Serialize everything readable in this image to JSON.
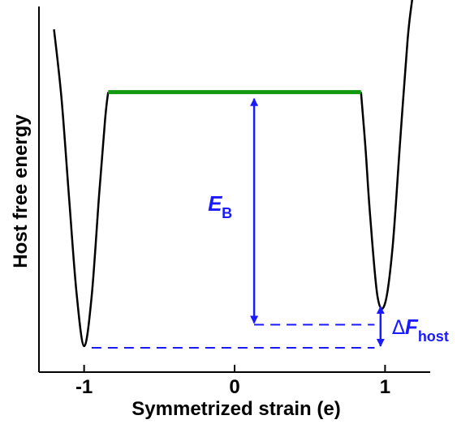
{
  "chart_data": {
    "type": "line",
    "title": "",
    "xlabel": "Symmetrized strain (e)",
    "ylabel": "Host free energy",
    "xlim": [
      -1.3,
      1.3
    ],
    "ylim": [
      0,
      1
    ],
    "x_ticks": [
      {
        "value": -1,
        "label": "-1"
      },
      {
        "value": 0,
        "label": "0"
      },
      {
        "value": 1,
        "label": "1"
      }
    ],
    "y_ticks": [],
    "grid": false,
    "curve": {
      "color": "#000000",
      "segments": [
        {
          "x": [
            -1.2,
            -1.15,
            -1.1,
            -1.05,
            -1.0,
            -0.95,
            -0.9,
            -0.86,
            -0.84
          ],
          "y": [
            0.96,
            0.75,
            0.45,
            0.16,
            0.0,
            0.15,
            0.46,
            0.69,
            0.77
          ]
        },
        {
          "x": [
            0.84,
            0.87,
            0.9,
            0.95,
            1.0,
            1.05,
            1.1,
            1.15,
            1.18
          ],
          "y": [
            0.77,
            0.6,
            0.4,
            0.15,
            0.13,
            0.3,
            0.62,
            0.93,
            1.05
          ]
        }
      ]
    },
    "plateau": {
      "x": [
        -0.84,
        0.84
      ],
      "y": 0.77,
      "color": "#119911"
    },
    "annotations": {
      "color": "#1a1aff",
      "eb_arrow": {
        "x": 0.13,
        "y_from": 0.07,
        "y_to": 0.75
      },
      "eb_label": {
        "main": "E",
        "sub": "B"
      },
      "upper_dashed": {
        "x_from": 0.13,
        "x_to": 0.93,
        "y": 0.065
      },
      "lower_dashed": {
        "x_from": -0.95,
        "x_to": 0.93,
        "y": -0.005
      },
      "df_arrow": {
        "x": 0.97,
        "y_from": 0.0,
        "y_to": 0.12
      },
      "df_label": {
        "delta": "Δ",
        "main": "F",
        "sub": "host"
      }
    }
  }
}
